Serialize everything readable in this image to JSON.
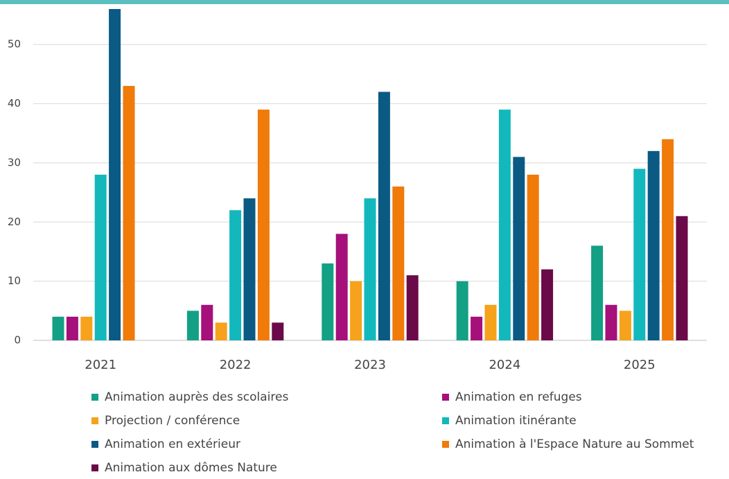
{
  "chart_data": {
    "type": "bar",
    "categories": [
      "2021",
      "2022",
      "2023",
      "2024",
      "2025"
    ],
    "series": [
      {
        "name": "Animation auprès des scolaires",
        "color": "#13a085",
        "values": [
          4,
          5,
          13,
          10,
          16
        ]
      },
      {
        "name": "Animation en refuges",
        "color": "#a5107a",
        "values": [
          4,
          6,
          18,
          4,
          6
        ]
      },
      {
        "name": "Projection / conférence",
        "color": "#f6a21c",
        "values": [
          4,
          3,
          10,
          6,
          5
        ]
      },
      {
        "name": "Animation itinérante",
        "color": "#13b8bc",
        "values": [
          28,
          22,
          24,
          39,
          29
        ]
      },
      {
        "name": "Animation en extérieur",
        "color": "#0a5a84",
        "values": [
          56,
          24,
          42,
          31,
          32
        ]
      },
      {
        "name": "Animation à l'Espace Nature au Sommet",
        "color": "#f07a0a",
        "values": [
          43,
          39,
          26,
          28,
          34
        ]
      },
      {
        "name": "Animation aux dômes Nature",
        "color": "#6a0a48",
        "values": [
          null,
          3,
          11,
          12,
          21
        ]
      }
    ],
    "ylim": [
      0,
      56
    ],
    "yticks": [
      0,
      10,
      20,
      30,
      40,
      50
    ],
    "grid": true
  }
}
